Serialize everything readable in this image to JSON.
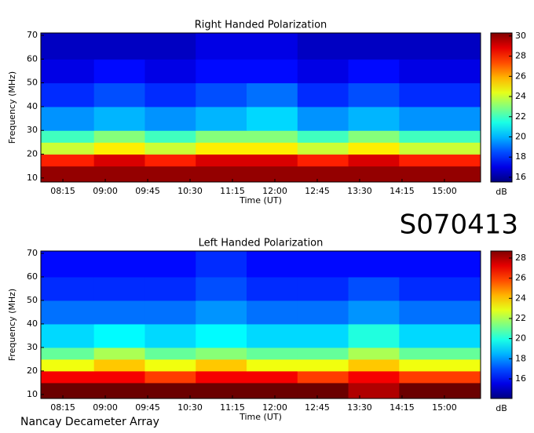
{
  "title": "S070413",
  "footer": "Nancay Decameter Array",
  "chart_data": [
    {
      "type": "heatmap",
      "title": "Right Handed Polarization",
      "xlabel": "Time (UT)",
      "ylabel": "Frequency (MHz)",
      "colorbar_label": "dB",
      "colormap": "jet",
      "xlim": [
        7.86,
        15.64
      ],
      "xticks": [
        {
          "value": 8.25,
          "label": "08:15"
        },
        {
          "value": 9,
          "label": "09:00"
        },
        {
          "value": 9.75,
          "label": "09:45"
        },
        {
          "value": 10.5,
          "label": "10:30"
        },
        {
          "value": 11.25,
          "label": "11:15"
        },
        {
          "value": 12,
          "label": "12:00"
        },
        {
          "value": 12.75,
          "label": "12:45"
        },
        {
          "value": 13.5,
          "label": "13:30"
        },
        {
          "value": 14.25,
          "label": "14:15"
        },
        {
          "value": 15,
          "label": "15:00"
        }
      ],
      "ylim": [
        8.3,
        71
      ],
      "yticks": [
        10,
        20,
        30,
        40,
        50,
        60,
        70
      ],
      "xbins": [
        7.86,
        8.8,
        9.7,
        10.6,
        11.5,
        12.4,
        13.3,
        14.2,
        15.64
      ],
      "ybins": [
        8.3,
        15,
        20,
        25,
        30,
        40,
        50,
        60,
        71
      ],
      "z": [
        [
          30,
          30,
          30,
          30,
          30,
          30,
          30,
          30
        ],
        [
          28,
          29,
          28,
          29,
          29,
          28,
          29,
          28
        ],
        [
          24,
          25,
          24,
          25,
          25,
          24,
          25,
          24
        ],
        [
          22,
          23,
          22,
          23,
          23,
          22,
          23,
          22
        ],
        [
          19.5,
          20,
          19.5,
          20,
          20.5,
          19.5,
          20,
          19.5
        ],
        [
          18,
          18.5,
          18,
          18.5,
          19,
          18,
          18.5,
          18
        ],
        [
          17,
          17.5,
          17,
          17.5,
          17.5,
          17,
          17.5,
          17
        ],
        [
          16.5,
          16.5,
          16.5,
          17,
          17,
          16.5,
          16.5,
          16.5
        ]
      ],
      "zlim": [
        15.53,
        30.3
      ],
      "zticks": [
        16,
        18,
        20,
        22,
        24,
        26,
        28,
        30
      ]
    },
    {
      "type": "heatmap",
      "title": "Left Handed Polarization",
      "xlabel": "Time (UT)",
      "ylabel": "Frequency (MHz)",
      "colorbar_label": "dB",
      "colormap": "jet",
      "xlim": [
        7.86,
        15.64
      ],
      "xticks": [
        {
          "value": 8.25,
          "label": "08:15"
        },
        {
          "value": 9,
          "label": "09:00"
        },
        {
          "value": 9.75,
          "label": "09:45"
        },
        {
          "value": 10.5,
          "label": "10:30"
        },
        {
          "value": 11.25,
          "label": "11:15"
        },
        {
          "value": 12,
          "label": "12:00"
        },
        {
          "value": 12.75,
          "label": "12:45"
        },
        {
          "value": 13.5,
          "label": "13:30"
        },
        {
          "value": 14.25,
          "label": "14:15"
        },
        {
          "value": 15,
          "label": "15:00"
        }
      ],
      "ylim": [
        8.3,
        71
      ],
      "yticks": [
        10,
        20,
        30,
        40,
        50,
        60,
        70
      ],
      "xbins": [
        7.86,
        8.8,
        9.7,
        10.6,
        11.5,
        12.4,
        13.3,
        14.2,
        15.64
      ],
      "ybins": [
        8.3,
        15,
        20,
        25,
        30,
        40,
        50,
        60,
        71
      ],
      "z": [
        [
          29,
          29,
          29,
          29,
          29,
          29,
          28,
          29
        ],
        [
          27,
          27,
          26,
          27,
          27,
          26,
          27,
          26
        ],
        [
          23,
          24,
          23,
          24,
          23,
          23,
          24,
          23
        ],
        [
          21,
          22,
          21,
          21.5,
          21,
          21,
          22,
          21
        ],
        [
          19,
          19.5,
          19,
          19.5,
          19,
          19,
          20,
          19
        ],
        [
          17.5,
          17.5,
          17.5,
          18,
          17.5,
          17.5,
          18,
          17.5
        ],
        [
          16.5,
          16.5,
          16.5,
          17,
          16.5,
          16.5,
          17,
          16.5
        ],
        [
          16,
          16,
          16,
          16.5,
          16,
          16,
          16,
          16
        ]
      ],
      "zlim": [
        14.05,
        28.7
      ],
      "zticks": [
        16,
        18,
        20,
        22,
        24,
        26,
        28
      ]
    }
  ]
}
